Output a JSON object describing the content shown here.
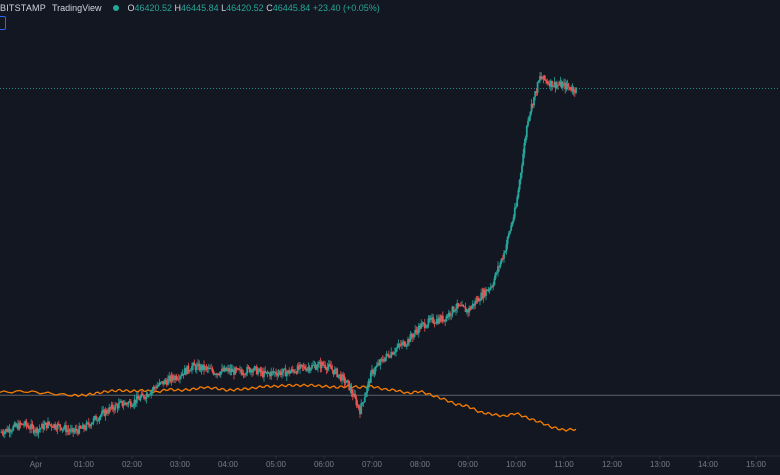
{
  "header": {
    "symbol": "BITSTAMP",
    "brand": "TradingView",
    "open_label": "O",
    "open": "46420.52",
    "high_label": "H",
    "high": "46445.84",
    "low_label": "L",
    "low": "46420.52",
    "close_label": "C",
    "close": "46445.84",
    "change": "+23.40 (+0.05%)"
  },
  "colors": {
    "background": "#131722",
    "up": "#26a69a",
    "down": "#ef5350",
    "overlay_line": "#f57c00",
    "axis_text": "#787b86",
    "last_price_line": "#26a69a",
    "reference_line": "#5d606b"
  },
  "chart_data": {
    "type": "line",
    "description_free": true,
    "x_axis": {
      "ticks": [
        "Apr",
        "01:00",
        "02:00",
        "03:00",
        "04:00",
        "05:00",
        "06:00",
        "07:00",
        "08:00",
        "09:00",
        "10:00",
        "11:00",
        "12:00",
        "13:00",
        "14:00",
        "15:00"
      ],
      "tick_hours": [
        0,
        1,
        2,
        3,
        4,
        5,
        6,
        7,
        8,
        9,
        10,
        11,
        12,
        13,
        14,
        15
      ],
      "range_hours": [
        -0.75,
        15.5
      ]
    },
    "y_axis_range": [
      44600,
      46800
    ],
    "series": [
      {
        "kind": "candles",
        "x": [
          -0.75,
          -0.5,
          -0.25,
          0,
          0.25,
          0.5,
          0.75,
          1,
          1.25,
          1.5,
          1.75,
          2,
          2.25,
          2.5,
          2.75,
          3,
          3.25,
          3.5,
          3.75,
          4,
          4.25,
          4.5,
          4.75,
          5,
          5.25,
          5.5,
          5.75,
          6,
          6.25,
          6.5,
          6.75,
          7,
          7.25,
          7.5,
          7.75,
          8,
          8.25,
          8.5,
          8.75,
          9,
          9.25,
          9.5,
          9.75,
          10,
          10.25,
          10.5,
          10.75,
          11,
          11.25
        ],
        "values": [
          44720,
          44740,
          44760,
          44730,
          44760,
          44750,
          44720,
          44740,
          44790,
          44830,
          44860,
          44870,
          44900,
          44950,
          44980,
          45010,
          45050,
          45040,
          45020,
          45030,
          45020,
          45040,
          45010,
          45020,
          45020,
          45040,
          45050,
          45060,
          45020,
          44960,
          44830,
          45020,
          45090,
          45140,
          45180,
          45250,
          45280,
          45290,
          45350,
          45330,
          45400,
          45460,
          45620,
          45850,
          46300,
          46500,
          46470,
          46460,
          46440
        ]
      },
      {
        "kind": "overlay",
        "x": [
          -0.75,
          -0.25,
          0.25,
          0.75,
          1,
          1.25,
          1.5,
          1.75,
          2,
          2.25,
          2.5,
          2.75,
          3,
          3.25,
          3.5,
          3.75,
          4,
          4.25,
          4.5,
          4.75,
          5,
          5.25,
          5.5,
          5.75,
          6,
          6.25,
          6.5,
          6.75,
          7,
          7.25,
          7.5,
          7.75,
          8,
          8.25,
          8.5,
          8.75,
          9,
          9.25,
          9.5,
          9.75,
          10,
          10.25,
          10.5,
          10.75,
          11,
          11.25
        ],
        "values": [
          44920,
          44925,
          44915,
          44905,
          44905,
          44915,
          44925,
          44930,
          44925,
          44930,
          44920,
          44935,
          44930,
          44935,
          44945,
          44940,
          44930,
          44935,
          44940,
          44950,
          44950,
          44955,
          44955,
          44955,
          44950,
          44945,
          44950,
          44945,
          44950,
          44935,
          44930,
          44915,
          44925,
          44905,
          44885,
          44860,
          44850,
          44820,
          44810,
          44800,
          44815,
          44790,
          44770,
          44745,
          44730,
          44735
        ]
      }
    ],
    "last_price": 46445.84,
    "reference_level": 44905,
    "grid": false,
    "legend": "none"
  }
}
